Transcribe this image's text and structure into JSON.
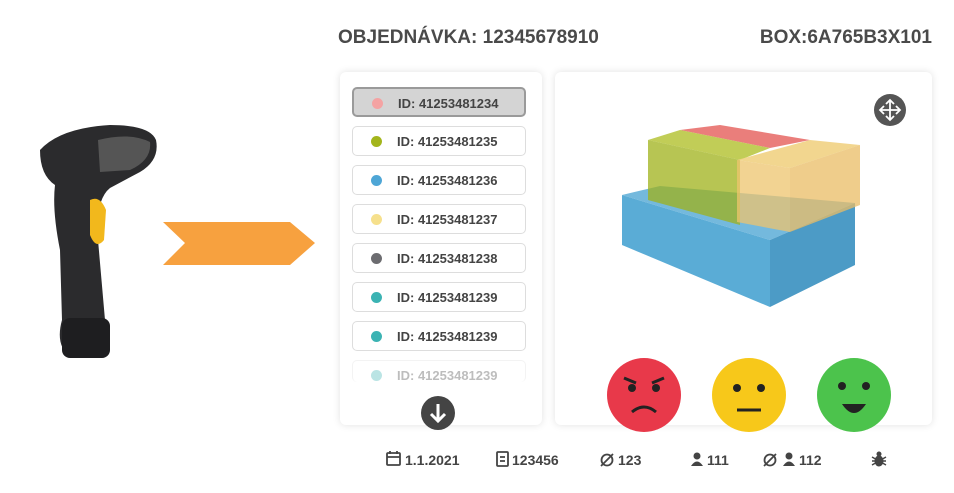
{
  "header": {
    "order": "OBJEDNÁVKA: 12345678910",
    "box": "BOX:6A765B3X101"
  },
  "items": [
    {
      "label": "ID: 41253481234",
      "color": "#f4a3a3"
    },
    {
      "label": "ID: 41253481235",
      "color": "#a3b51c"
    },
    {
      "label": "ID: 41253481236",
      "color": "#4ea6d6"
    },
    {
      "label": "ID: 41253481237",
      "color": "#f6e08c"
    },
    {
      "label": "ID: 41253481238",
      "color": "#6c6c70"
    },
    {
      "label": "ID: 41253481239",
      "color": "#3bb3b3"
    },
    {
      "label": "ID: 41253481239",
      "color": "#3bb3b3"
    },
    {
      "label": "ID: 41253481239",
      "color": "#3bb3b3"
    }
  ],
  "footer": {
    "date": "1.1.2021",
    "sheet": "123456",
    "diameter": "123",
    "users": "111",
    "users_none": "112"
  }
}
